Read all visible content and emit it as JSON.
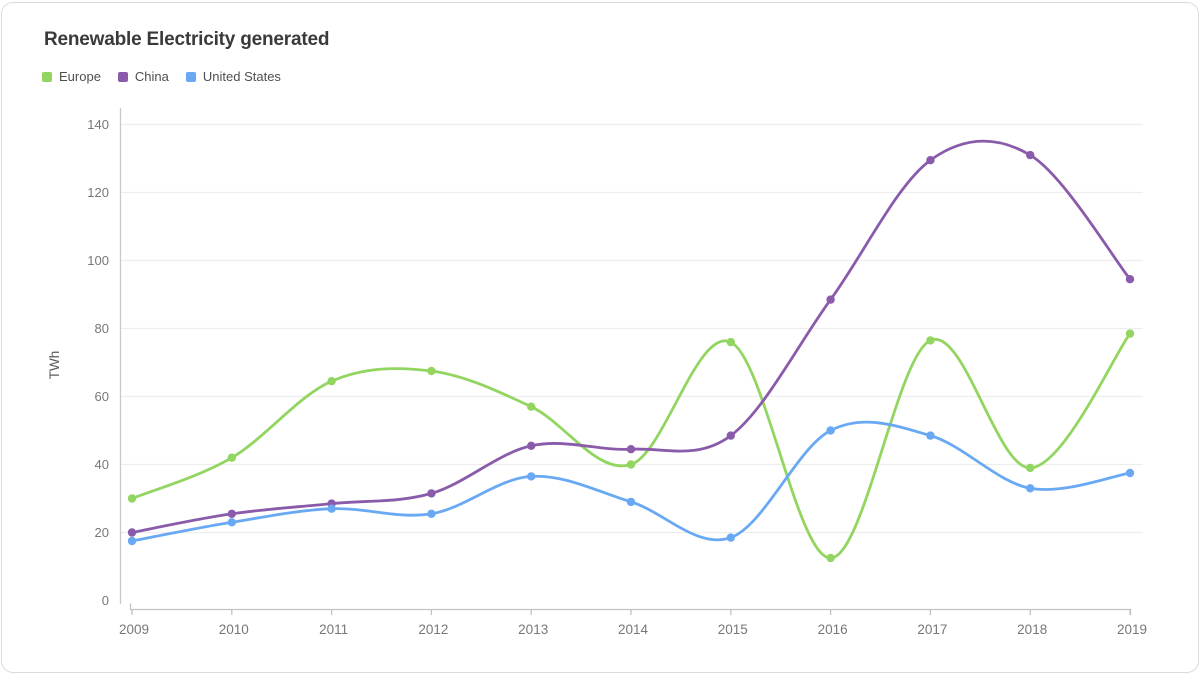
{
  "card": {
    "title": "Renewable Electricity generated"
  },
  "colors": {
    "europe": "#92d560",
    "china": "#8a5bab",
    "united_states": "#69a9f4",
    "gridline": "#ededed",
    "axis_line": "#c9c9c9",
    "tick_text": "#787878",
    "title_text": "#3a3a3a",
    "card_border": "#dbdbdb"
  },
  "chart_data": {
    "type": "line",
    "title": "Renewable Electricity generated",
    "xlabel": "",
    "ylabel": "TWh",
    "x": [
      2009,
      2010,
      2011,
      2012,
      2013,
      2014,
      2015,
      2016,
      2017,
      2018,
      2019
    ],
    "series": [
      {
        "name": "Europe",
        "color": "#92d560",
        "values": [
          30,
          42,
          64.5,
          67.5,
          57,
          40,
          76,
          12.5,
          76.5,
          39,
          78.5
        ]
      },
      {
        "name": "China",
        "color": "#8a5bab",
        "values": [
          20,
          25.5,
          28.5,
          31.5,
          45.5,
          44.5,
          48.5,
          88.5,
          129.5,
          131,
          94.5
        ]
      },
      {
        "name": "United States",
        "color": "#69a9f4",
        "values": [
          17.5,
          23,
          27,
          25.5,
          36.5,
          29,
          18.5,
          50,
          48.5,
          33,
          37.5
        ]
      }
    ],
    "ylim": [
      0,
      140
    ],
    "yticks": [
      0,
      20,
      40,
      60,
      80,
      100,
      120,
      140
    ],
    "grid": true,
    "curve": "smooth",
    "markers": true,
    "legend_position": "top-left"
  }
}
